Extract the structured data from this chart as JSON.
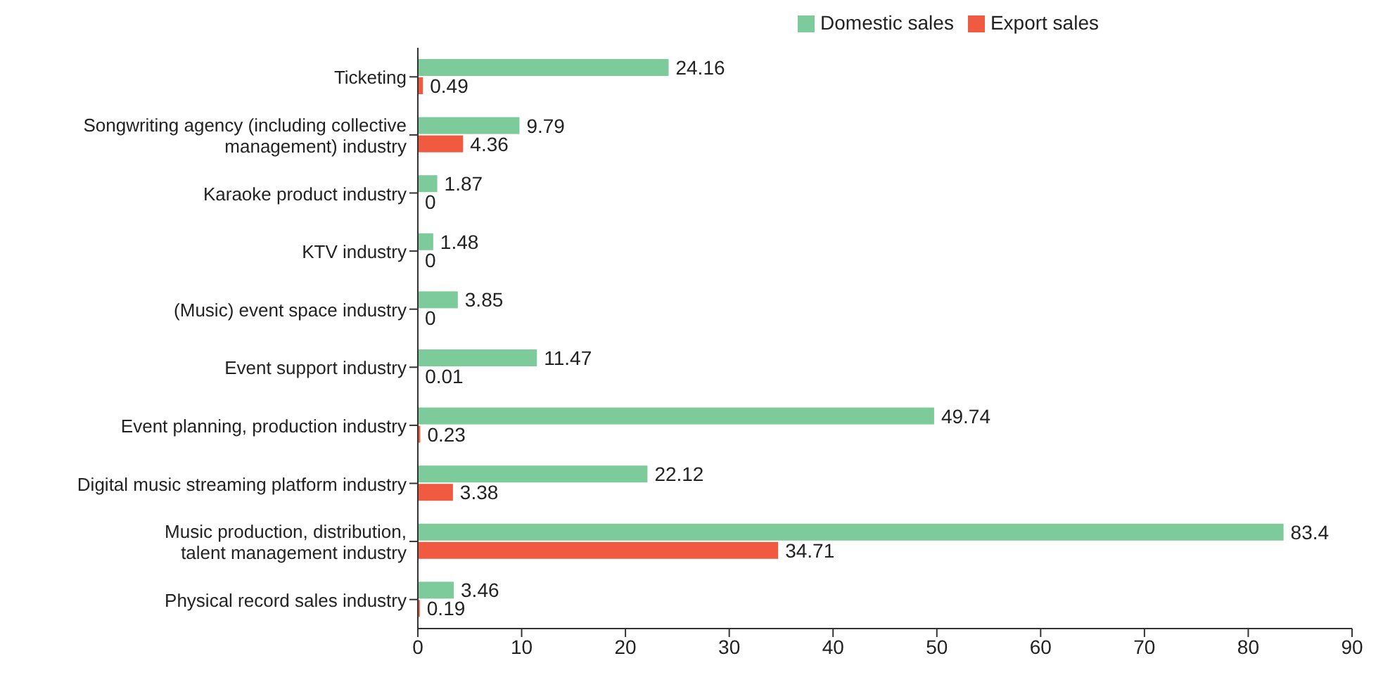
{
  "chart_data": {
    "type": "bar",
    "orientation": "horizontal",
    "categories": [
      "Ticketing",
      "Songwriting agency (including collective\nmanagement) industry",
      "Karaoke product industry",
      "KTV industry",
      "(Music) event space industry",
      "Event support industry",
      "Event planning, production industry",
      "Digital music streaming platform industry",
      "Music production, distribution,\ntalent management industry",
      "Physical record sales industry"
    ],
    "series": [
      {
        "name": "Domestic sales",
        "color": "#7dcb9a",
        "values": [
          24.16,
          9.79,
          1.87,
          1.48,
          3.85,
          11.47,
          49.74,
          22.12,
          83.4,
          3.46
        ]
      },
      {
        "name": "Export sales",
        "color": "#f05a40",
        "values": [
          0.49,
          4.36,
          0,
          0,
          0,
          0.01,
          0.23,
          3.38,
          34.71,
          0.19
        ]
      }
    ],
    "xlim": [
      0,
      90
    ],
    "xticks": [
      0,
      10,
      20,
      30,
      40,
      50,
      60,
      70,
      80,
      90
    ],
    "data_labels": true,
    "legend": "top right",
    "grid": false
  }
}
